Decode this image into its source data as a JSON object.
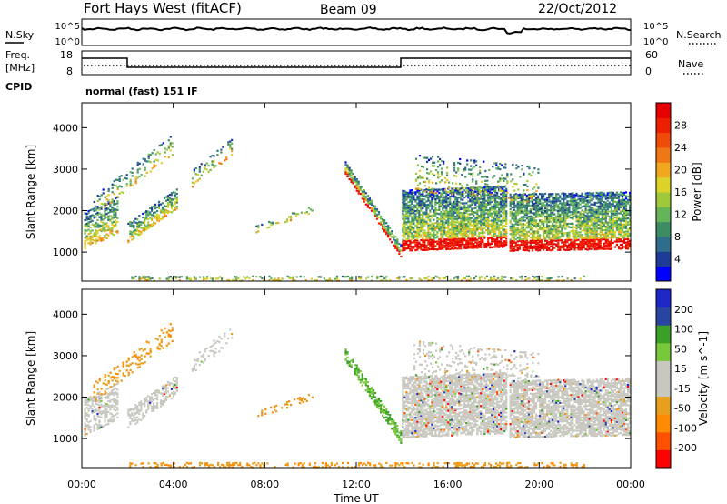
{
  "header": {
    "title": "Fort Hays West (fitACF)",
    "beam": "Beam 09",
    "date": "22/Oct/2012"
  },
  "noise_panel": {
    "left_label": "N.Sky",
    "right_label": "N.Search",
    "left_ticks": [
      "10^5",
      "10^0"
    ],
    "right_ticks": [
      "10^5",
      "10^0"
    ]
  },
  "freq_panel": {
    "left_label_top": "Freq.",
    "left_label_bottom": "[MHz]",
    "left_ticks": [
      "18",
      "8"
    ],
    "right_label": "Nave",
    "right_ticks": [
      "60",
      "0"
    ],
    "cpid_label": "CPID",
    "mode_text": "normal (fast) 151 IF"
  },
  "colors": {
    "power": [
      "#0000ff",
      "#1e3c96",
      "#2e6e8c",
      "#3c8c64",
      "#64b45a",
      "#a0c83c",
      "#dcd228",
      "#f0a81e",
      "#f07814",
      "#f04b0a",
      "#f01e00",
      "#e60000"
    ],
    "velocity": [
      "#ff0000",
      "#ff5000",
      "#ff8c00",
      "#e6a01e",
      "#c8c8c0",
      "#c8c8c0",
      "#78c83c",
      "#3ca028",
      "#2846a0",
      "#1e28c8"
    ]
  },
  "chart_data": [
    {
      "type": "heatmap",
      "name": "power",
      "ylabel": "Slant Range [km]",
      "yticks": [
        1000,
        2000,
        3000,
        4000
      ],
      "ylim": [
        300,
        4600
      ],
      "xlim": [
        0,
        24
      ],
      "colorbar_label": "Power [dB]",
      "colorbar_ticks": [
        "4",
        "8",
        "12",
        "16",
        "20",
        "24",
        "28"
      ],
      "colorbar_range": [
        0,
        32
      ]
    },
    {
      "type": "heatmap",
      "name": "velocity",
      "ylabel": "Slant Range [km]",
      "yticks": [
        1000,
        2000,
        3000,
        4000
      ],
      "ylim": [
        300,
        4600
      ],
      "xlim": [
        0,
        24
      ],
      "colorbar_label": "Velocity [m s^-1]",
      "colorbar_ticks": [
        "-200",
        "-100",
        "-50",
        "-15",
        "15",
        "50",
        "100",
        "200"
      ]
    }
  ],
  "xaxis": {
    "label": "Time UT",
    "ticks": [
      "00:00",
      "04:00",
      "08:00",
      "12:00",
      "16:00",
      "20:00",
      "00:00"
    ]
  }
}
